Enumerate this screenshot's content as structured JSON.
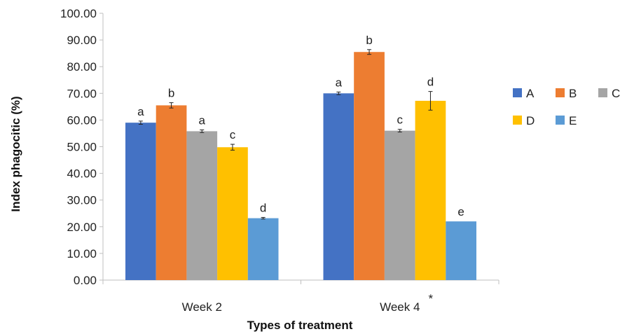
{
  "chart_data": {
    "type": "bar",
    "title": "",
    "xlabel": "Types of treatment",
    "ylabel": "Index phagocitic (%)",
    "ylim": [
      0,
      100
    ],
    "y_ticks": [
      "0.00",
      "10.00",
      "20.00",
      "30.00",
      "40.00",
      "50.00",
      "60.00",
      "70.00",
      "80.00",
      "90.00",
      "100.00"
    ],
    "categories": [
      "Week 2",
      "Week 4"
    ],
    "category_marks": [
      "",
      "*"
    ],
    "grid": false,
    "legend_position": "right",
    "series": [
      {
        "name": "A",
        "color": "#4472C4",
        "values": [
          59.0,
          70.0
        ],
        "errors": [
          0.6,
          0.5
        ],
        "labels": [
          "a",
          "a"
        ]
      },
      {
        "name": "B",
        "color": "#ED7D31",
        "values": [
          65.5,
          85.5
        ],
        "errors": [
          1.0,
          0.9
        ],
        "labels": [
          "b",
          "b"
        ]
      },
      {
        "name": "C",
        "color": "#A5A5A5",
        "values": [
          55.8,
          56.0
        ],
        "errors": [
          0.5,
          0.5
        ],
        "labels": [
          "a",
          "c"
        ]
      },
      {
        "name": "D",
        "color": "#FFC000",
        "values": [
          49.8,
          67.2
        ],
        "errors": [
          1.1,
          3.5
        ],
        "labels": [
          "c",
          "d"
        ]
      },
      {
        "name": "E",
        "color": "#5B9BD5",
        "values": [
          23.2,
          22.0
        ],
        "errors": [
          0.3,
          0.0
        ],
        "labels": [
          "d",
          "e"
        ]
      }
    ]
  }
}
